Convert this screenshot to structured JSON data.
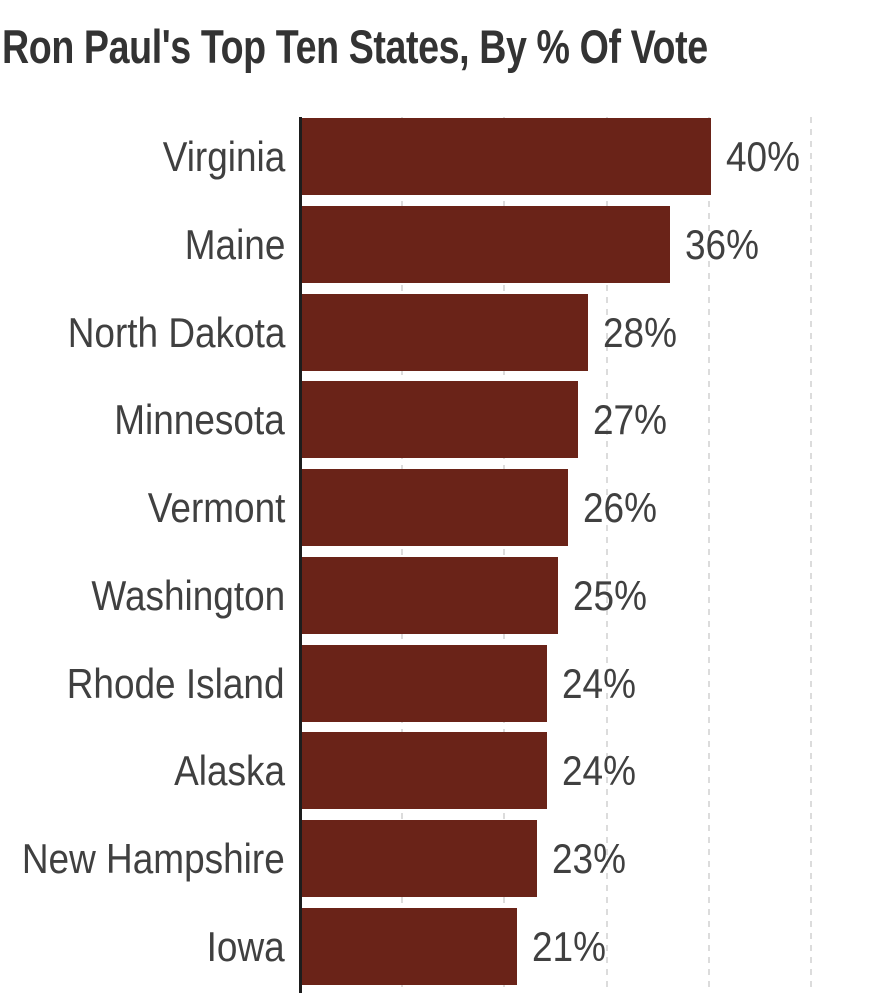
{
  "chart_data": {
    "type": "bar",
    "orientation": "horizontal",
    "title": "Ron Paul's Top Ten States, By % Of Vote",
    "categories": [
      "Virginia",
      "Maine",
      "North Dakota",
      "Minnesota",
      "Vermont",
      "Washington",
      "Rhode Island",
      "Alaska",
      "New Hampshire",
      "Iowa"
    ],
    "values": [
      40,
      36,
      28,
      27,
      26,
      25,
      24,
      24,
      23,
      21
    ],
    "value_labels": [
      "40%",
      "36%",
      "28%",
      "27%",
      "26%",
      "25%",
      "24%",
      "24%",
      "23%",
      "21%"
    ],
    "unit": "%",
    "xlabel": "",
    "ylabel": "",
    "xlim": [
      0,
      56
    ],
    "gridlines_pct": [
      10,
      20,
      30,
      40,
      50
    ],
    "grid": "vertical-dashed",
    "legend": "none",
    "colors": {
      "bar": "#6a2318",
      "axis": "#1d1d1d",
      "gridline": "#dcdcdc",
      "title": "#333333",
      "label": "#404040",
      "background": "#ffffff"
    }
  }
}
